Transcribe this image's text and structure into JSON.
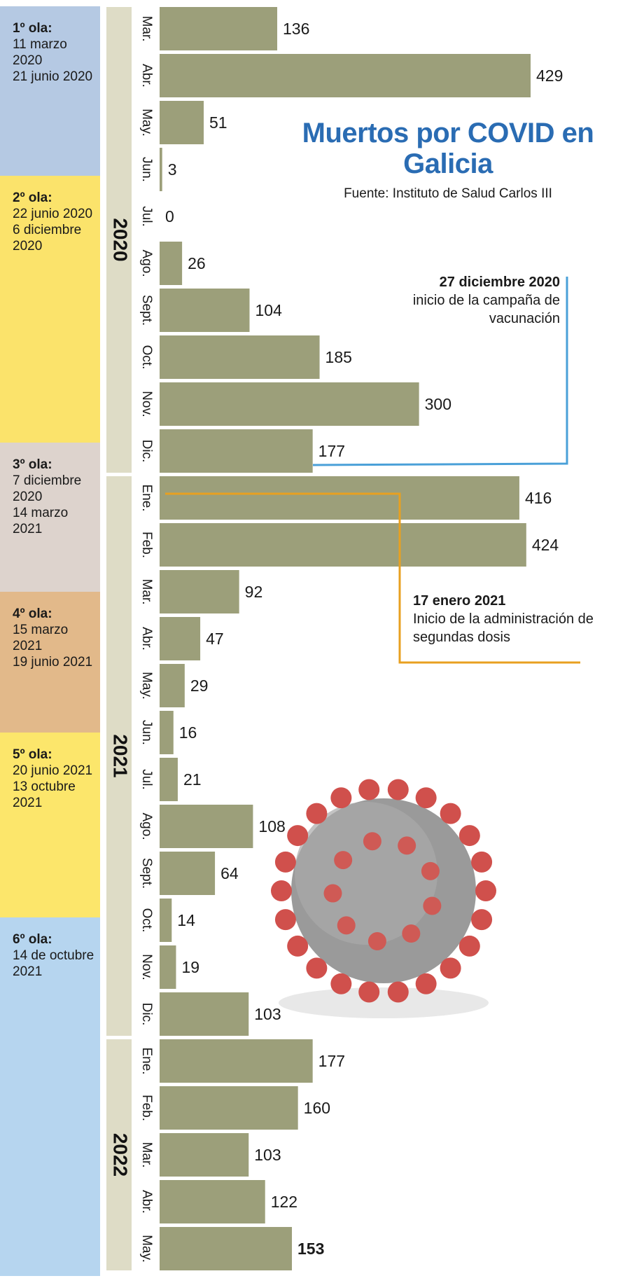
{
  "chart_data": {
    "type": "bar",
    "orientation": "horizontal",
    "title": "Muertos por COVID en Galicia",
    "source": "Fuente: Instituto de Salud Carlos III",
    "color": "#9c9f7a",
    "groups": [
      {
        "name": "2020",
        "categories": [
          "Mar.",
          "Abr.",
          "May.",
          "Jun.",
          "Jul.",
          "Ago.",
          "Sept.",
          "Oct.",
          "Nov.",
          "Dic."
        ],
        "values": [
          136,
          429,
          51,
          3,
          0,
          26,
          104,
          185,
          300,
          177
        ]
      },
      {
        "name": "2021",
        "categories": [
          "Ene.",
          "Feb.",
          "Mar.",
          "Abr.",
          "May.",
          "Jun.",
          "Jul.",
          "Ago.",
          "Sept.",
          "Oct.",
          "Nov.",
          "Dic."
        ],
        "values": [
          416,
          424,
          92,
          47,
          29,
          16,
          21,
          108,
          64,
          14,
          19,
          103
        ]
      },
      {
        "name": "2022",
        "categories": [
          "Ene.",
          "Feb.",
          "Mar.",
          "Abr.",
          "May."
        ],
        "values": [
          177,
          160,
          103,
          122,
          153
        ]
      }
    ],
    "waves": [
      {
        "title": "1º ola:",
        "start": "11 marzo 2020",
        "end": "21 junio 2020",
        "color": "#b5c9e3"
      },
      {
        "title": "2º ola:",
        "start": "22 junio 2020",
        "end": "6 diciembre 2020",
        "color": "#fbe36b"
      },
      {
        "title": "3º ola:",
        "start": "7 diciembre 2020",
        "end": "14 marzo 2021",
        "color": "#ddd3cd"
      },
      {
        "title": "4º ola:",
        "start": "15 marzo 2021",
        "end": "19 junio 2021",
        "color": "#e2b98a"
      },
      {
        "title": "5º ola:",
        "start": "20 junio 2021",
        "end": "13 octubre 2021",
        "color": "#fce66b"
      },
      {
        "title": "6º ola:",
        "start": "14 de octubre 2021",
        "color": "#b6d5ef"
      }
    ],
    "annotations": [
      {
        "date": "27 diciembre 2020",
        "text": "inicio de la campaña de vacunación",
        "color": "#4aa0d8"
      },
      {
        "date": "17 enero 2021",
        "text": "Inicio de la administración de segundas dosis",
        "color": "#e8a020"
      }
    ]
  }
}
